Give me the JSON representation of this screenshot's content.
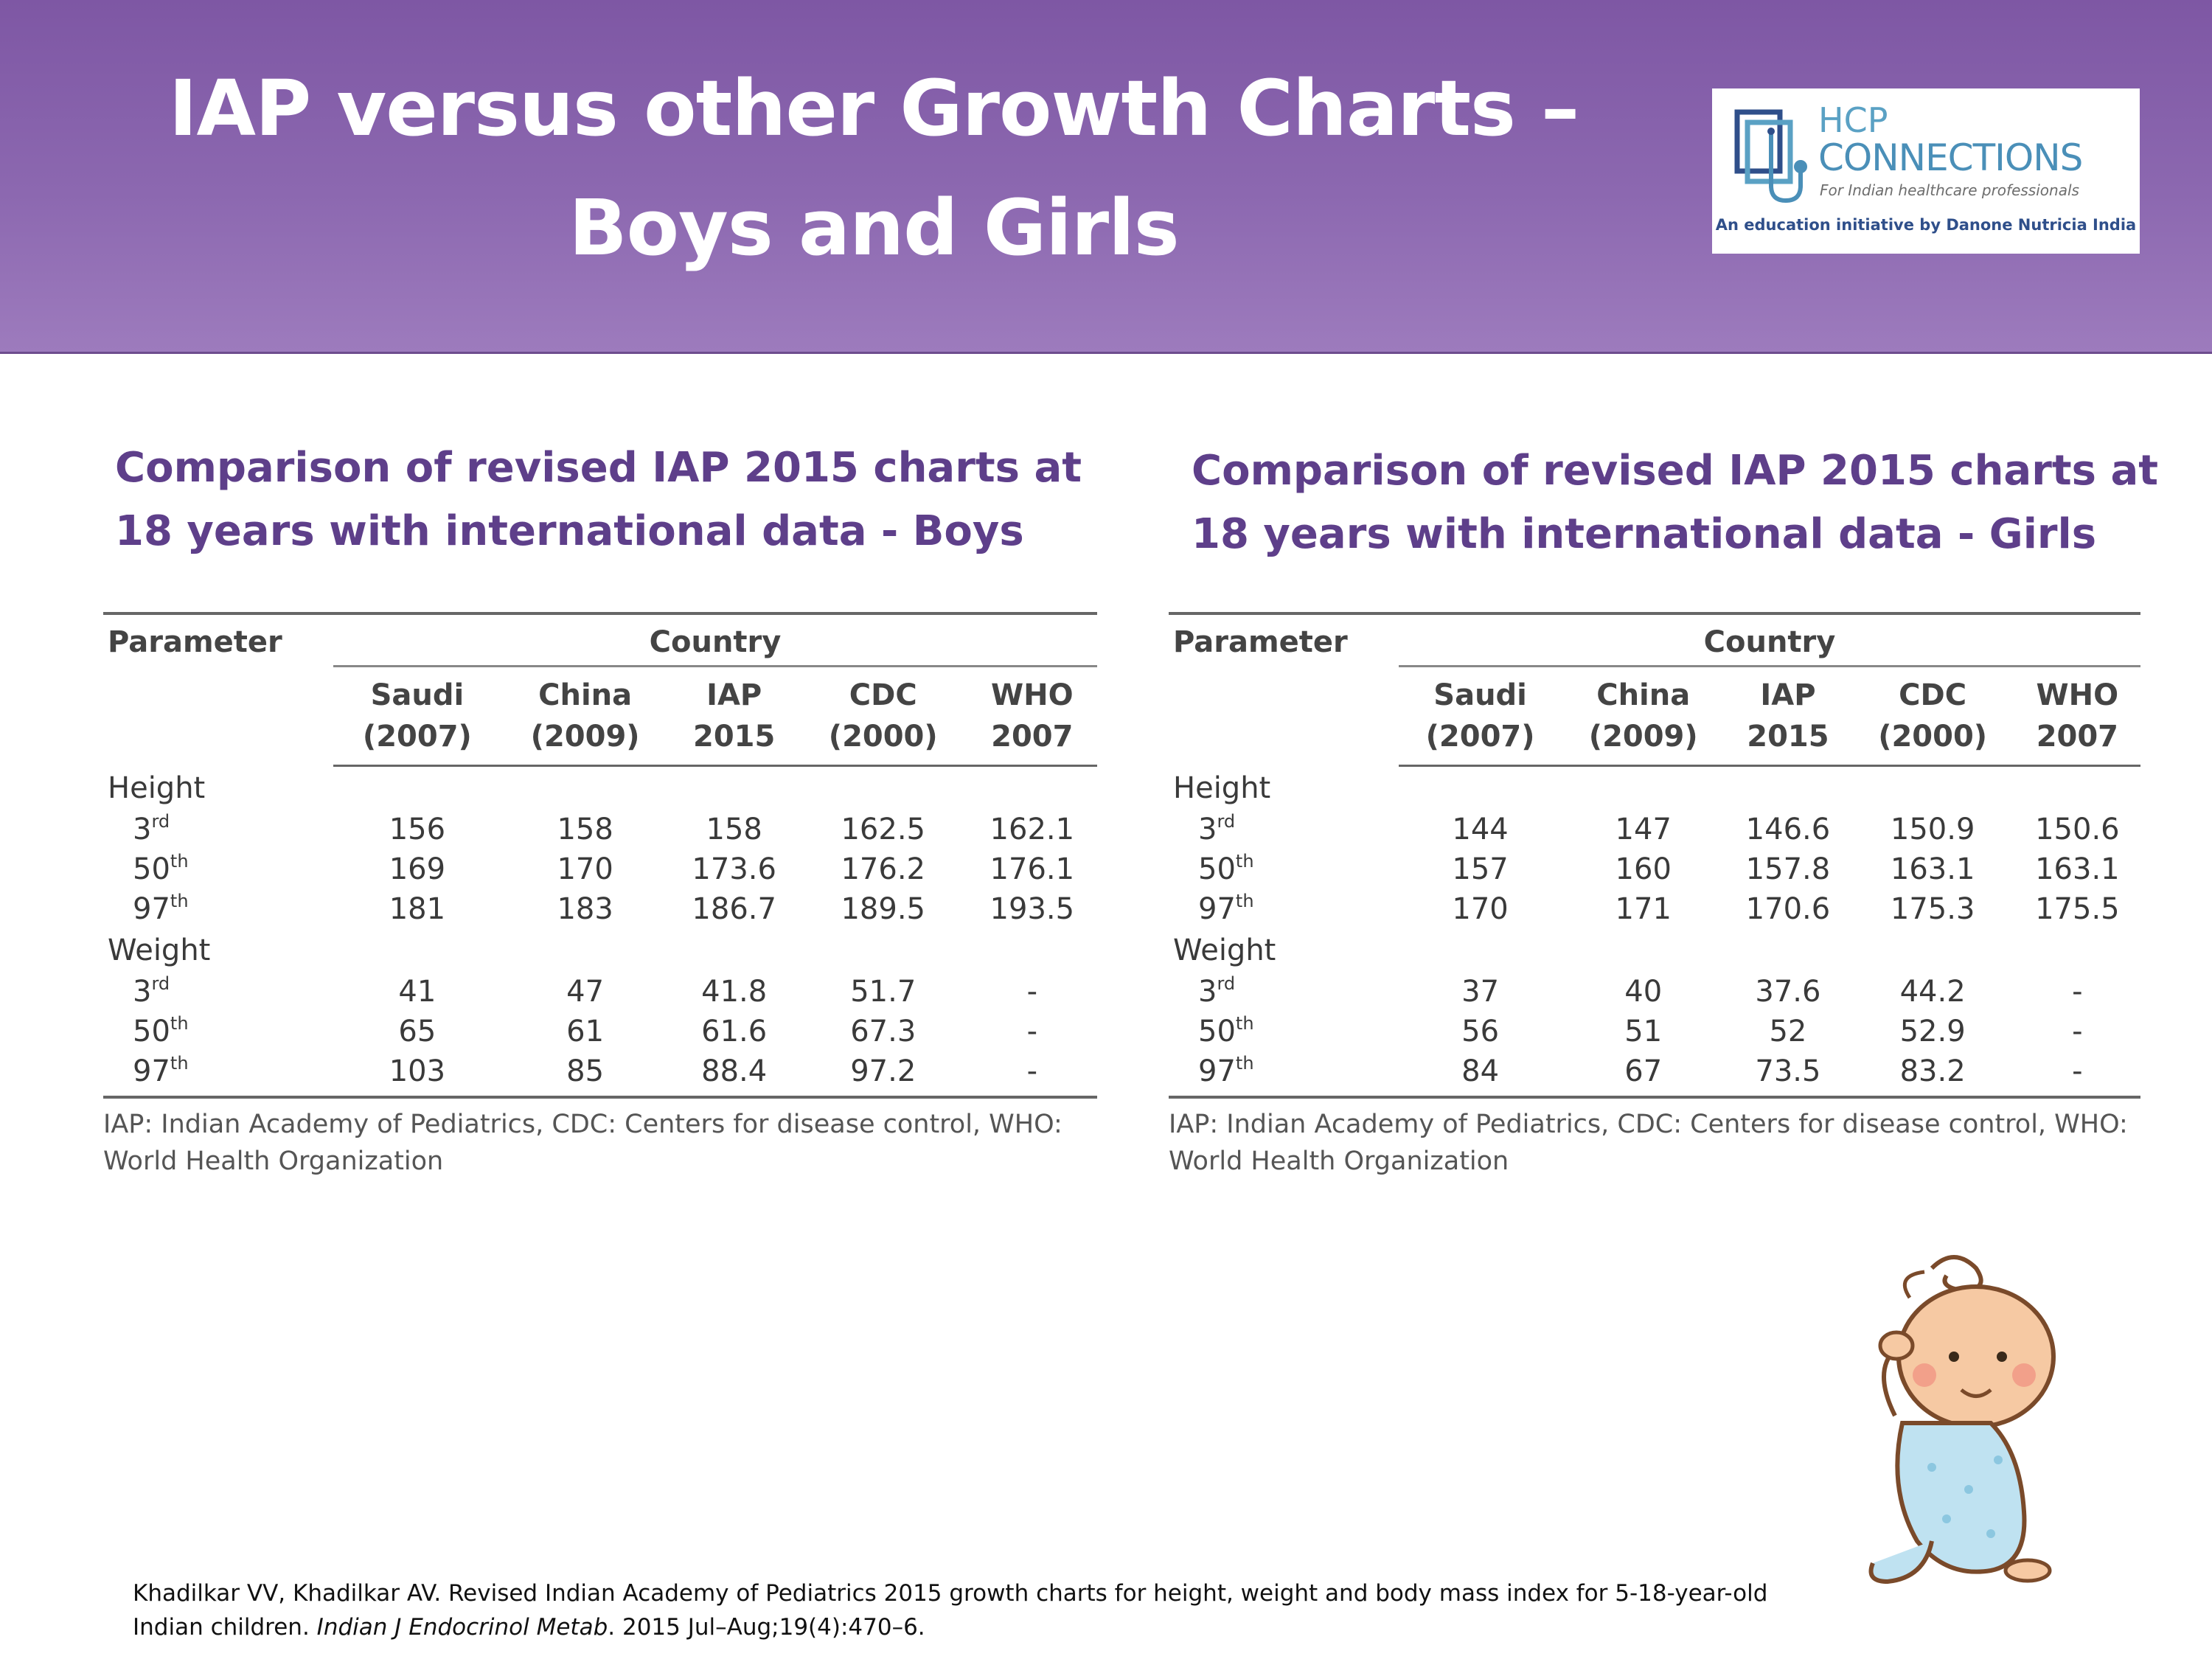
{
  "header": {
    "title_line1": "IAP versus other Growth Charts –",
    "title_line2": "Boys and Girls"
  },
  "logo": {
    "brand_hcp": "HCP",
    "brand_connections": "CONNECTIONS",
    "tagline": "For Indian healthcare professionals",
    "initiative": "An education initiative by Danone Nutricia India"
  },
  "columns": {
    "parameter": "Parameter",
    "country": "Country",
    "saudi_1": "Saudi",
    "saudi_2": "(2007)",
    "china_1": "China",
    "china_2": "(2009)",
    "iap_1": "IAP",
    "iap_2": "2015",
    "cdc_1": "CDC",
    "cdc_2": "(2000)",
    "who_1": "WHO",
    "who_2": "2007"
  },
  "groups": {
    "height": "Height",
    "weight": "Weight"
  },
  "percentiles": {
    "p3": "3",
    "p3_sup": "rd",
    "p50": "50",
    "p50_sup": "th",
    "p97": "97",
    "p97_sup": "th"
  },
  "boys": {
    "heading": "Comparison of revised IAP 2015 charts at 18 years with international data - Boys",
    "height": [
      [
        "156",
        "158",
        "158",
        "162.5",
        "162.1"
      ],
      [
        "169",
        "170",
        "173.6",
        "176.2",
        "176.1"
      ],
      [
        "181",
        "183",
        "186.7",
        "189.5",
        "193.5"
      ]
    ],
    "weight": [
      [
        "41",
        "47",
        "41.8",
        "51.7",
        "-"
      ],
      [
        "65",
        "61",
        "61.6",
        "67.3",
        "-"
      ],
      [
        "103",
        "85",
        "88.4",
        "97.2",
        "-"
      ]
    ],
    "note": "IAP: Indian Academy of Pediatrics, CDC: Centers for disease control, WHO: World Health Organization"
  },
  "girls": {
    "heading": "Comparison of revised IAP 2015 charts at 18 years with international data - Girls",
    "height": [
      [
        "144",
        "147",
        "146.6",
        "150.9",
        "150.6"
      ],
      [
        "157",
        "160",
        "157.8",
        "163.1",
        "163.1"
      ],
      [
        "170",
        "171",
        "170.6",
        "175.3",
        "175.5"
      ]
    ],
    "weight": [
      [
        "37",
        "40",
        "37.6",
        "44.2",
        "-"
      ],
      [
        "56",
        "51",
        "52",
        "52.9",
        "-"
      ],
      [
        "84",
        "67",
        "73.5",
        "83.2",
        "-"
      ]
    ],
    "note": "IAP: Indian Academy of Pediatrics, CDC: Centers for disease control, WHO: World Health Organization"
  },
  "citation": {
    "part1": "Khadilkar VV, Khadilkar AV. Revised Indian Academy of Pediatrics 2015 growth charts for height, weight and body mass index for 5-18-year-old Indian children. ",
    "journal": "Indian J Endocrinol Metab",
    "part2": ". 2015 Jul–Aug;19(4):470–6."
  },
  "icons": {
    "logo_mark": "stethoscope-logo-icon",
    "baby": "baby-illustration-icon"
  },
  "colors": {
    "header_purple": "#8c68b0",
    "heading_purple": "#5e3f8a",
    "logo_blue": "#4a8fb8"
  }
}
